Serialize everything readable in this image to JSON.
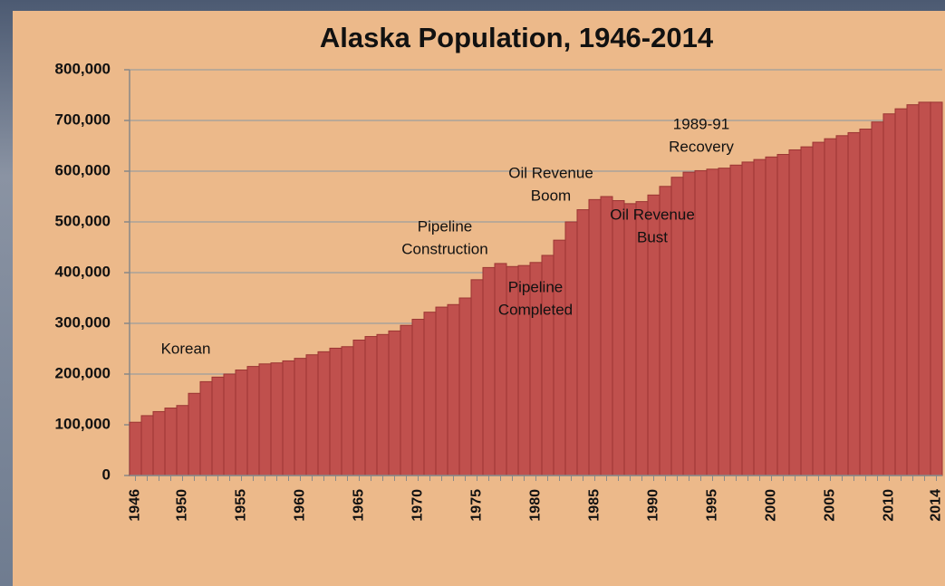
{
  "chart_data": {
    "type": "bar",
    "title": "Alaska Population, 1946-2014",
    "categories": [
      "1946",
      null,
      null,
      null,
      "1950",
      null,
      null,
      null,
      null,
      "1955",
      null,
      null,
      null,
      null,
      "1960",
      null,
      null,
      null,
      null,
      "1965",
      null,
      null,
      null,
      null,
      "1970",
      null,
      null,
      null,
      null,
      "1975",
      null,
      null,
      null,
      null,
      "1980",
      null,
      null,
      null,
      null,
      "1985",
      null,
      null,
      null,
      null,
      "1990",
      null,
      null,
      null,
      null,
      "1995",
      null,
      null,
      null,
      null,
      "2000",
      null,
      null,
      null,
      null,
      "2005",
      null,
      null,
      null,
      null,
      "2010",
      null,
      null,
      null,
      "2014"
    ],
    "values": [
      105000,
      118000,
      126000,
      133000,
      138000,
      162000,
      185000,
      194000,
      200000,
      208000,
      215000,
      220000,
      222000,
      226000,
      231000,
      238000,
      244000,
      251000,
      254000,
      267000,
      274000,
      278000,
      285000,
      296000,
      308000,
      322000,
      332000,
      337000,
      350000,
      386000,
      410000,
      418000,
      412000,
      414000,
      420000,
      434000,
      464000,
      500000,
      524000,
      544000,
      550000,
      542000,
      536000,
      540000,
      553000,
      570000,
      588000,
      598000,
      601000,
      604000,
      606000,
      612000,
      618000,
      623000,
      628000,
      633000,
      642000,
      648000,
      657000,
      664000,
      670000,
      676000,
      683000,
      697000,
      713000,
      723000,
      731000,
      736000,
      736000
    ],
    "color": "#c0504d",
    "ylim": [
      0,
      800000
    ],
    "yticks": [
      0,
      {
        "value": 100000,
        "label": "100,000"
      },
      {
        "value": 200000,
        "label": "200,000"
      },
      {
        "value": 300000,
        "label": "300,000"
      },
      {
        "value": 400000,
        "label": "400,000"
      },
      {
        "value": 500000,
        "label": "500,000"
      },
      {
        "value": 600000,
        "label": "600,000"
      },
      {
        "value": 700000,
        "label": "700,000"
      },
      {
        "value": 800000,
        "label": "800,000"
      }
    ],
    "grid": true,
    "annotations": [
      [
        "Korean"
      ],
      [
        "Pipeline",
        "Construction"
      ],
      [
        "Pipeline",
        "Completed"
      ],
      [
        "Oil Revenue",
        "Boom"
      ],
      [
        "Oil Revenue",
        "Bust"
      ],
      [
        "1989-91",
        "Recovery"
      ]
    ]
  }
}
